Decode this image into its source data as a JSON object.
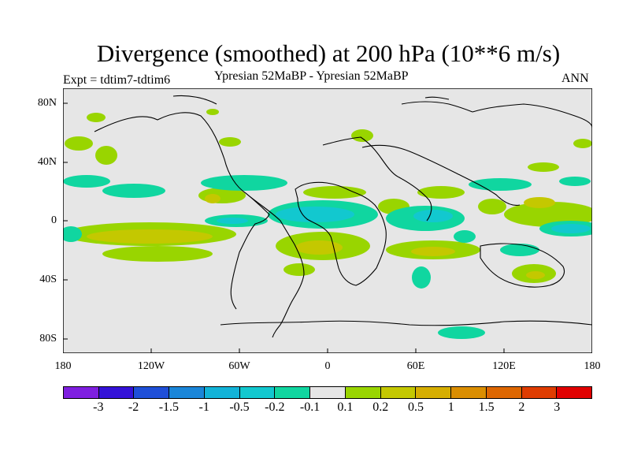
{
  "header": {
    "title": "Divergence (smoothed) at 200 hPa (10**6 m/s)",
    "experiment": "Expt = tdtim7-tdtim6",
    "subtitle": "Ypresian  52MaBP - Ypresian  52MaBP",
    "season": "ANN"
  },
  "map": {
    "y_axis_labels": [
      "80N",
      "40N",
      "0",
      "40S",
      "80S"
    ],
    "x_axis_labels": [
      "180",
      "120W",
      "60W",
      "0",
      "60E",
      "120E",
      "180"
    ],
    "background_color": "#e6e6e6"
  },
  "colorbar": {
    "labels": [
      "-3",
      "-2",
      "-1.5",
      "-1",
      "-0.5",
      "-0.2",
      "-0.1",
      "0.1",
      "0.2",
      "0.5",
      "1",
      "1.5",
      "2",
      "3"
    ],
    "colors": [
      "#7f1fe0",
      "#3412d8",
      "#1f4fd8",
      "#1a86d9",
      "#12b3d8",
      "#12c8cf",
      "#10d6a0",
      "#e6e6e6",
      "#99d500",
      "#c4c800",
      "#d6ae00",
      "#db8e00",
      "#dd6600",
      "#df3c00",
      "#e00000"
    ]
  }
}
